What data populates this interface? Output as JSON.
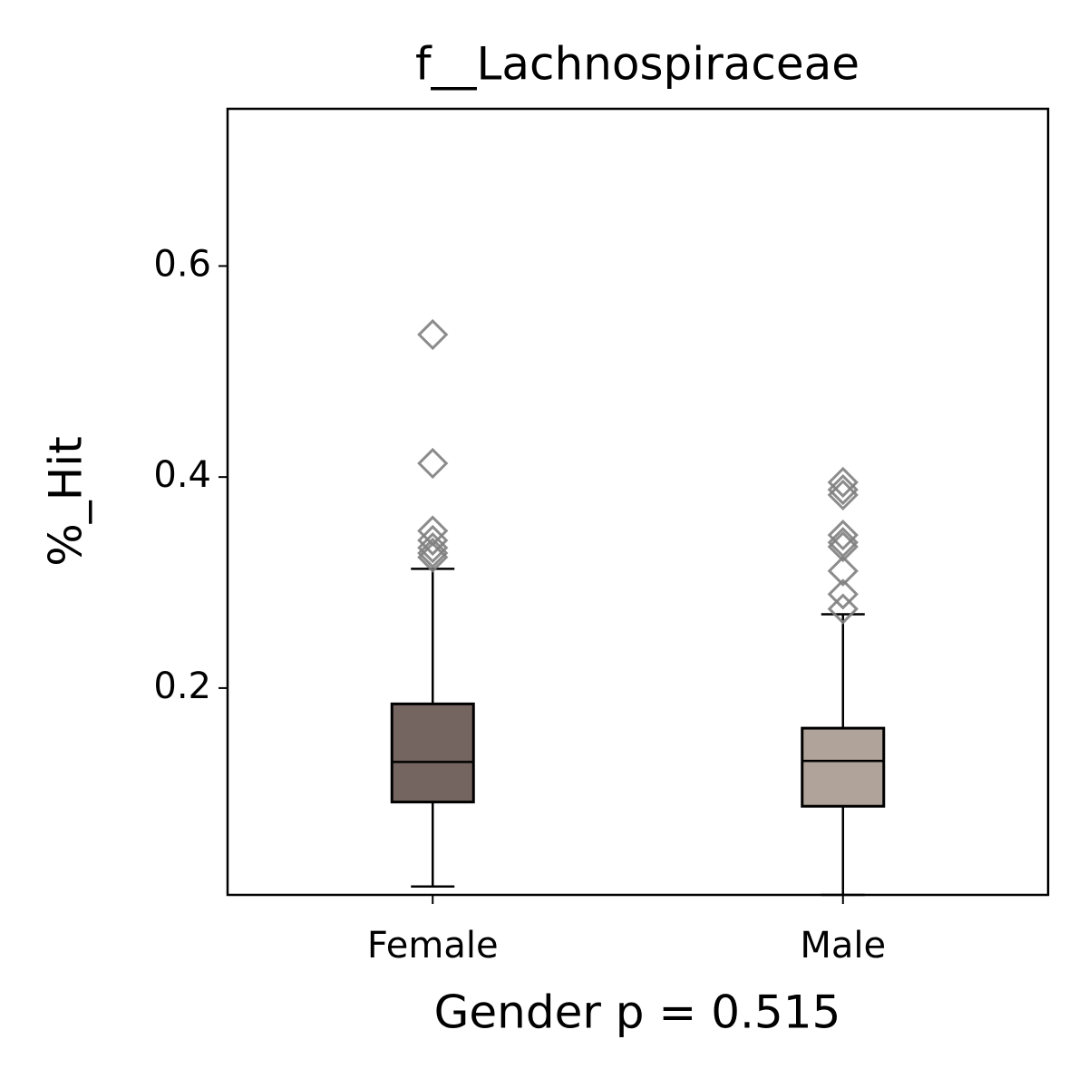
{
  "chart_data": {
    "type": "box",
    "title": "f__Lachnospiraceae",
    "x_label": "Gender p = 0.515",
    "y_label": "%_Hit",
    "categories": [
      "Female",
      "Male"
    ],
    "boxes": [
      {
        "color": "#756560",
        "whisker_low": 0.012,
        "q1": 0.092,
        "median": 0.13,
        "q3": 0.185,
        "whisker_high": 0.313,
        "outliers": [
          0.535,
          0.413,
          0.349,
          0.34,
          0.333,
          0.328,
          0.324
        ]
      },
      {
        "color": "#b0a49a",
        "whisker_low": 0.004,
        "q1": 0.088,
        "median": 0.131,
        "q3": 0.162,
        "whisker_high": 0.27,
        "outliers": [
          0.395,
          0.388,
          0.383,
          0.345,
          0.338,
          0.334,
          0.311,
          0.289,
          0.275
        ]
      }
    ],
    "outlier_color": "#808080",
    "ylim": [
      0.004,
      0.749
    ],
    "yticks": [
      0.2,
      0.4,
      0.6
    ]
  }
}
